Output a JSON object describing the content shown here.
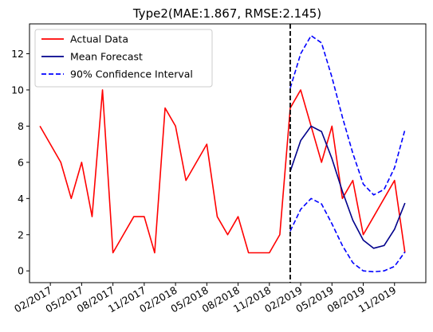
{
  "chart_data": {
    "type": "line",
    "title": "Type2(MAE:1.867, RMSE:2.145)",
    "xlabel": "",
    "ylabel": "",
    "x_tick_labels": [
      "02/2017",
      "05/2017",
      "08/2017",
      "11/2017",
      "02/2018",
      "05/2018",
      "08/2018",
      "11/2018",
      "02/2019",
      "05/2019",
      "08/2019",
      "11/2019"
    ],
    "x_tick_months": [
      "2017-02",
      "2017-05",
      "2017-08",
      "2017-11",
      "2018-02",
      "2018-05",
      "2018-08",
      "2018-11",
      "2019-02",
      "2019-05",
      "2019-08",
      "2019-11"
    ],
    "xlim": [
      "2016-12",
      "2020-02"
    ],
    "y_ticks": [
      0,
      2,
      4,
      6,
      8,
      10,
      12
    ],
    "ylim": [
      -0.65,
      13.65
    ],
    "grid": false,
    "legend_position": "top-left",
    "forecast_start": "2019-01",
    "series": [
      {
        "name": "Actual Data",
        "color": "#ff0000",
        "style": "solid",
        "x": [
          "2017-01",
          "2017-02",
          "2017-03",
          "2017-04",
          "2017-05",
          "2017-06",
          "2017-07",
          "2017-08",
          "2017-09",
          "2017-10",
          "2017-11",
          "2017-12",
          "2018-01",
          "2018-02",
          "2018-03",
          "2018-04",
          "2018-05",
          "2018-06",
          "2018-07",
          "2018-08",
          "2018-09",
          "2018-10",
          "2018-11",
          "2018-12",
          "2019-01",
          "2019-02",
          "2019-03",
          "2019-04",
          "2019-05",
          "2019-06",
          "2019-07",
          "2019-08",
          "2019-09",
          "2019-10",
          "2019-11",
          "2019-12"
        ],
        "values": [
          8,
          7,
          6,
          4,
          6,
          3,
          10,
          1,
          2,
          3,
          3,
          1,
          9,
          8,
          5,
          6,
          7,
          3,
          2,
          3,
          1,
          1,
          1,
          2,
          9,
          10,
          8,
          6,
          8,
          4,
          5,
          2,
          3,
          4,
          5,
          1
        ]
      },
      {
        "name": "Mean Forecast",
        "color": "#00008b",
        "style": "solid",
        "x": [
          "2019-01",
          "2019-02",
          "2019-03",
          "2019-04",
          "2019-05",
          "2019-06",
          "2019-07",
          "2019-08",
          "2019-09",
          "2019-10",
          "2019-11",
          "2019-12"
        ],
        "values": [
          5.5,
          7.2,
          8.0,
          7.7,
          6.2,
          4.4,
          2.8,
          1.7,
          1.25,
          1.4,
          2.3,
          3.75
        ]
      },
      {
        "name": "90% Confidence Interval",
        "color": "#0000ff",
        "style": "dashed",
        "x": [
          "2019-01",
          "2019-02",
          "2019-03",
          "2019-04",
          "2019-05",
          "2019-06",
          "2019-07",
          "2019-08",
          "2019-09",
          "2019-10",
          "2019-11",
          "2019-12"
        ],
        "values": [
          10.1,
          12.0,
          13.0,
          12.6,
          10.7,
          8.5,
          6.5,
          4.8,
          4.2,
          4.5,
          5.7,
          7.8
        ]
      },
      {
        "name": "",
        "color": "#0000ff",
        "style": "dashed",
        "x": [
          "2019-01",
          "2019-02",
          "2019-03",
          "2019-04",
          "2019-05",
          "2019-06",
          "2019-07",
          "2019-08",
          "2019-09",
          "2019-10",
          "2019-11",
          "2019-12"
        ],
        "values": [
          2.2,
          3.4,
          4.0,
          3.7,
          2.6,
          1.4,
          0.45,
          0.0,
          -0.05,
          0.0,
          0.25,
          1.05
        ]
      }
    ]
  }
}
